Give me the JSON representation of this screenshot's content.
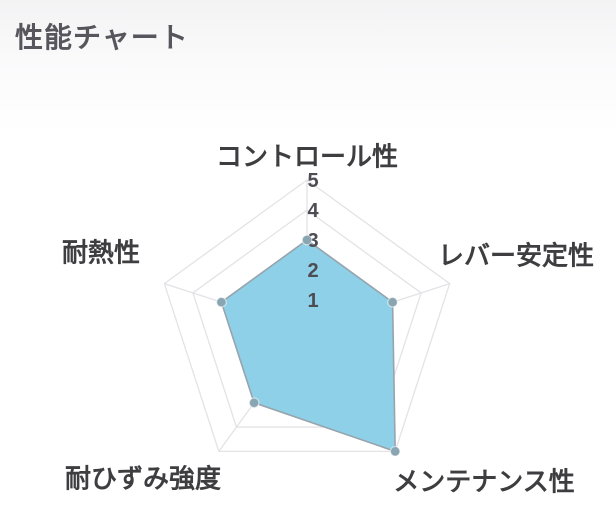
{
  "page": {
    "title": "性能チャート"
  },
  "chart_data": {
    "type": "radar",
    "title": "性能チャート",
    "categories": [
      "コントロール性",
      "レバー安定性",
      "メンテナンス性",
      "耐ひずみ強度",
      "耐熱性"
    ],
    "values": [
      3,
      3,
      5,
      3,
      3
    ],
    "scale": {
      "min": 0,
      "max": 5,
      "ticks": [
        1,
        2,
        3,
        4,
        5
      ]
    },
    "legend_position": "none",
    "grid": "pentagon-rings",
    "colors": {
      "fill": "#89CDE8",
      "border": "#96A4AC",
      "marker": "#8AA5B2",
      "marker_edge": "#FFFFFF",
      "grid_line": "#E3E3E7",
      "tick_text": "#4C4C52",
      "label_text": "#3E3E41",
      "title_text": "#56565C"
    }
  }
}
